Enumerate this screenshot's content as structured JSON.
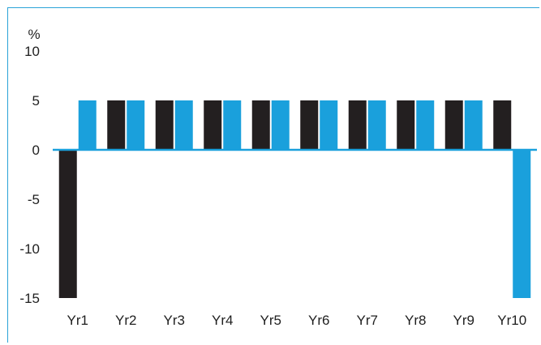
{
  "chart_data": {
    "type": "bar",
    "ylabel": "%",
    "ylim": [
      -15,
      10
    ],
    "yticks": [
      "10",
      "5",
      "0",
      "-5",
      "-10",
      "-15"
    ],
    "categories": [
      "Yr1",
      "Yr2",
      "Yr3",
      "Yr4",
      "Yr5",
      "Yr6",
      "Yr7",
      "Yr8",
      "Yr9",
      "Yr10"
    ],
    "series": [
      {
        "color": "#231f20",
        "values": [
          -15,
          5,
          5,
          5,
          5,
          5,
          5,
          5,
          5,
          5
        ]
      },
      {
        "color": "#1aa0dc",
        "values": [
          5,
          5,
          5,
          5,
          5,
          5,
          5,
          5,
          5,
          -15
        ]
      }
    ],
    "zero_line_color": "#1aa0dc",
    "grid": false,
    "legend": "none"
  }
}
